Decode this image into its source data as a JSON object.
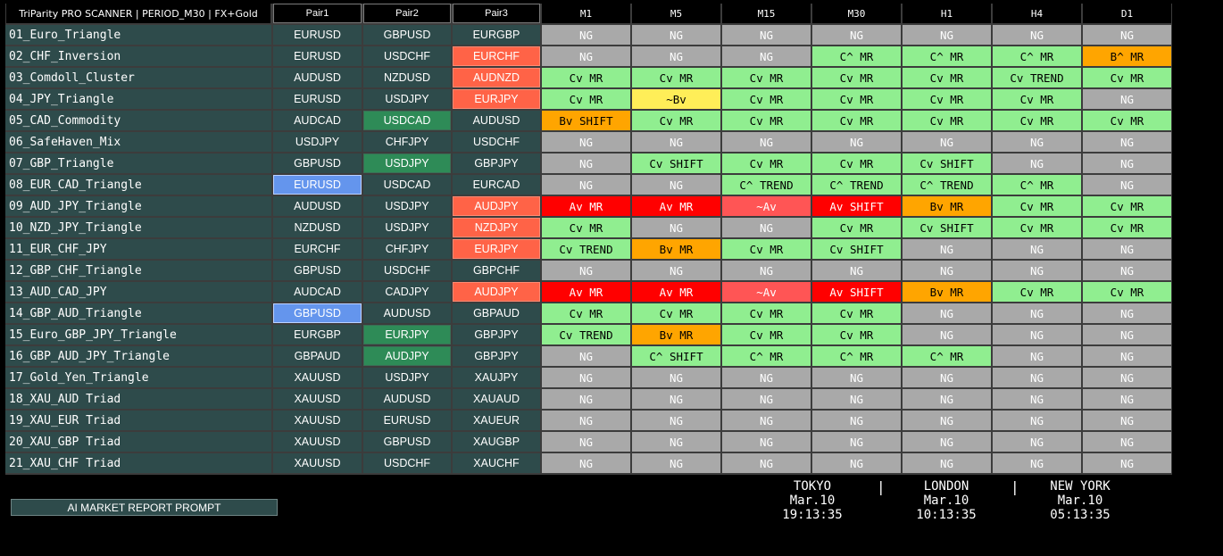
{
  "header": {
    "title": "TriParity PRO SCANNER | PERIOD_M30 | FX+Gold",
    "pair1": "Pair1",
    "pair2": "Pair2",
    "pair3": "Pair3",
    "timeframes": [
      "M1",
      "M5",
      "M15",
      "M30",
      "H1",
      "H4",
      "D1"
    ]
  },
  "colors": {
    "NG": "#a9a9a9",
    "C": "#90ee90",
    "B": "#ffa500",
    "A": "#ff0000",
    "~A": "#ff5555",
    "~B": "#ffee58",
    "pair_default": "#2e4b4b",
    "pair_red": "#ff6347",
    "pair_green": "#2e8b57",
    "pair_blue": "#6495ed"
  },
  "rows": [
    {
      "name": "01_Euro_Triangle",
      "p1": "EURUSD",
      "p2": "GBPUSD",
      "p3": "EURGBP",
      "hl": [
        0,
        0,
        0
      ],
      "sig": [
        "NG",
        "NG",
        "NG",
        "NG",
        "NG",
        "NG",
        "NG"
      ]
    },
    {
      "name": "02_CHF_Inversion",
      "p1": "EURUSD",
      "p2": "USDCHF",
      "p3": "EURCHF",
      "hl": [
        0,
        0,
        1
      ],
      "sig": [
        "NG",
        "NG",
        "NG",
        "C^ MR",
        "C^ MR",
        "C^ MR",
        "B^ MR"
      ]
    },
    {
      "name": "03_Comdoll_Cluster",
      "p1": "AUDUSD",
      "p2": "NZDUSD",
      "p3": "AUDNZD",
      "hl": [
        0,
        0,
        1
      ],
      "sig": [
        "Cv MR",
        "Cv MR",
        "Cv MR",
        "Cv MR",
        "Cv MR",
        "Cv TREND",
        "Cv MR"
      ]
    },
    {
      "name": "04_JPY_Triangle",
      "p1": "EURUSD",
      "p2": "USDJPY",
      "p3": "EURJPY",
      "hl": [
        0,
        0,
        1
      ],
      "sig": [
        "Cv MR",
        "~Bv",
        "Cv MR",
        "Cv MR",
        "Cv MR",
        "Cv MR",
        "NG"
      ]
    },
    {
      "name": "05_CAD_Commodity",
      "p1": "AUDCAD",
      "p2": "USDCAD",
      "p3": "AUDUSD",
      "hl": [
        0,
        2,
        0
      ],
      "sig": [
        "Bv SHIFT",
        "Cv MR",
        "Cv MR",
        "Cv MR",
        "Cv MR",
        "Cv MR",
        "Cv MR"
      ]
    },
    {
      "name": "06_SafeHaven_Mix",
      "p1": "USDJPY",
      "p2": "CHFJPY",
      "p3": "USDCHF",
      "hl": [
        0,
        0,
        0
      ],
      "sig": [
        "NG",
        "NG",
        "NG",
        "NG",
        "NG",
        "NG",
        "NG"
      ]
    },
    {
      "name": "07_GBP_Triangle",
      "p1": "GBPUSD",
      "p2": "USDJPY",
      "p3": "GBPJPY",
      "hl": [
        0,
        2,
        0
      ],
      "sig": [
        "NG",
        "Cv SHIFT",
        "Cv MR",
        "Cv MR",
        "Cv SHIFT",
        "NG",
        "NG"
      ]
    },
    {
      "name": "08_EUR_CAD_Triangle",
      "p1": "EURUSD",
      "p2": "USDCAD",
      "p3": "EURCAD",
      "hl": [
        3,
        0,
        0
      ],
      "sig": [
        "NG",
        "NG",
        "C^ TREND",
        "C^ TREND",
        "C^ TREND",
        "C^ MR",
        "NG"
      ]
    },
    {
      "name": "09_AUD_JPY_Triangle",
      "p1": "AUDUSD",
      "p2": "USDJPY",
      "p3": "AUDJPY",
      "hl": [
        0,
        0,
        1
      ],
      "sig": [
        "Av MR",
        "Av MR",
        "~Av",
        "Av SHIFT",
        "Bv MR",
        "Cv MR",
        "Cv MR"
      ]
    },
    {
      "name": "10_NZD_JPY_Triangle",
      "p1": "NZDUSD",
      "p2": "USDJPY",
      "p3": "NZDJPY",
      "hl": [
        0,
        0,
        1
      ],
      "sig": [
        "Cv MR",
        "NG",
        "NG",
        "Cv MR",
        "Cv SHIFT",
        "Cv MR",
        "Cv MR"
      ]
    },
    {
      "name": "11_EUR_CHF_JPY",
      "p1": "EURCHF",
      "p2": "CHFJPY",
      "p3": "EURJPY",
      "hl": [
        0,
        0,
        1
      ],
      "sig": [
        "Cv TREND",
        "Bv MR",
        "Cv MR",
        "Cv SHIFT",
        "NG",
        "NG",
        "NG"
      ]
    },
    {
      "name": "12_GBP_CHF_Triangle",
      "p1": "GBPUSD",
      "p2": "USDCHF",
      "p3": "GBPCHF",
      "hl": [
        0,
        0,
        0
      ],
      "sig": [
        "NG",
        "NG",
        "NG",
        "NG",
        "NG",
        "NG",
        "NG"
      ]
    },
    {
      "name": "13_AUD_CAD_JPY",
      "p1": "AUDCAD",
      "p2": "CADJPY",
      "p3": "AUDJPY",
      "hl": [
        0,
        0,
        1
      ],
      "sig": [
        "Av MR",
        "Av MR",
        "~Av",
        "Av SHIFT",
        "Bv MR",
        "Cv MR",
        "Cv MR"
      ]
    },
    {
      "name": "14_GBP_AUD_Triangle",
      "p1": "GBPUSD",
      "p2": "AUDUSD",
      "p3": "GBPAUD",
      "hl": [
        3,
        0,
        0
      ],
      "sig": [
        "Cv MR",
        "Cv MR",
        "Cv MR",
        "Cv MR",
        "NG",
        "NG",
        "NG"
      ]
    },
    {
      "name": "15_Euro_GBP_JPY_Triangle",
      "p1": "EURGBP",
      "p2": "EURJPY",
      "p3": "GBPJPY",
      "hl": [
        0,
        2,
        0
      ],
      "sig": [
        "Cv TREND",
        "Bv MR",
        "Cv MR",
        "Cv MR",
        "NG",
        "NG",
        "NG"
      ]
    },
    {
      "name": "16_GBP_AUD_JPY_Triangle",
      "p1": "GBPAUD",
      "p2": "AUDJPY",
      "p3": "GBPJPY",
      "hl": [
        0,
        2,
        0
      ],
      "sig": [
        "NG",
        "C^ SHIFT",
        "C^ MR",
        "C^ MR",
        "C^ MR",
        "NG",
        "NG"
      ]
    },
    {
      "name": "17_Gold_Yen_Triangle",
      "p1": "XAUUSD",
      "p2": "USDJPY",
      "p3": "XAUJPY",
      "hl": [
        0,
        0,
        0
      ],
      "sig": [
        "NG",
        "NG",
        "NG",
        "NG",
        "NG",
        "NG",
        "NG"
      ]
    },
    {
      "name": "18_XAU_AUD Triad",
      "p1": "XAUUSD",
      "p2": "AUDUSD",
      "p3": "XAUAUD",
      "hl": [
        0,
        0,
        0
      ],
      "sig": [
        "NG",
        "NG",
        "NG",
        "NG",
        "NG",
        "NG",
        "NG"
      ]
    },
    {
      "name": "19_XAU_EUR Triad",
      "p1": "XAUUSD",
      "p2": "EURUSD",
      "p3": "XAUEUR",
      "hl": [
        0,
        0,
        0
      ],
      "sig": [
        "NG",
        "NG",
        "NG",
        "NG",
        "NG",
        "NG",
        "NG"
      ]
    },
    {
      "name": "20_XAU_GBP Triad",
      "p1": "XAUUSD",
      "p2": "GBPUSD",
      "p3": "XAUGBP",
      "hl": [
        0,
        0,
        0
      ],
      "sig": [
        "NG",
        "NG",
        "NG",
        "NG",
        "NG",
        "NG",
        "NG"
      ]
    },
    {
      "name": "21_XAU_CHF Triad",
      "p1": "XAUUSD",
      "p2": "USDCHF",
      "p3": "XAUCHF",
      "hl": [
        0,
        0,
        0
      ],
      "sig": [
        "NG",
        "NG",
        "NG",
        "NG",
        "NG",
        "NG",
        "NG"
      ]
    }
  ],
  "footer": {
    "report_button": "AI MARKET REPORT PROMPT",
    "separator": "|",
    "clocks": [
      {
        "city": "TOKYO",
        "date": "Mar.10",
        "time": "19:13:35"
      },
      {
        "city": "LONDON",
        "date": "Mar.10",
        "time": "10:13:35"
      },
      {
        "city": "NEW YORK",
        "date": "Mar.10",
        "time": "05:13:35"
      }
    ]
  }
}
